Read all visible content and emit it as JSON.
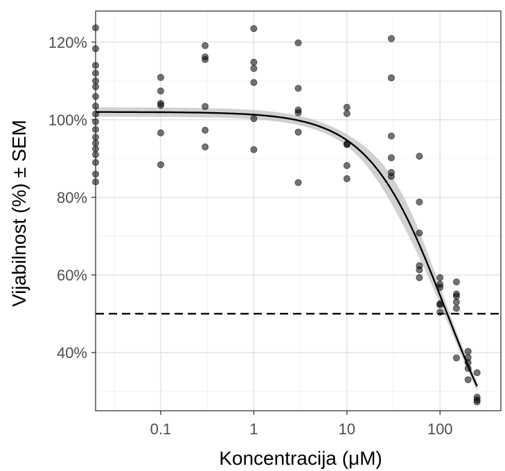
{
  "chart_data": {
    "type": "scatter",
    "xlabel": "Koncentracija (μM)",
    "ylabel": "Vijabilnost (%) ± SEM",
    "x_scale": "log10",
    "xlim": [
      0.02,
      450
    ],
    "ylim": [
      25,
      128
    ],
    "x_ticks": [
      {
        "value": 0.1,
        "label": "0.1"
      },
      {
        "value": 1,
        "label": "1"
      },
      {
        "value": 10,
        "label": "10"
      },
      {
        "value": 100,
        "label": "100"
      }
    ],
    "y_ticks": [
      {
        "value": 40,
        "label": "40%"
      },
      {
        "value": 60,
        "label": "60%"
      },
      {
        "value": 80,
        "label": "80%"
      },
      {
        "value": 100,
        "label": "100%"
      },
      {
        "value": 120,
        "label": "120%"
      }
    ],
    "grid": true,
    "reference_line": {
      "y": 50,
      "style": "dashed"
    },
    "fit_curve": {
      "model": "log-logistic",
      "top": 102,
      "bottom": 0,
      "ec50": 115,
      "hill": 1.05,
      "x_range": [
        0.02,
        250
      ],
      "confidence_band": true
    },
    "points": [
      {
        "x": 0.02,
        "y": 123.7
      },
      {
        "x": 0.02,
        "y": 118.3
      },
      {
        "x": 0.02,
        "y": 114.0
      },
      {
        "x": 0.02,
        "y": 112.0
      },
      {
        "x": 0.02,
        "y": 110.0
      },
      {
        "x": 0.02,
        "y": 108.5
      },
      {
        "x": 0.02,
        "y": 106.0
      },
      {
        "x": 0.02,
        "y": 103.5
      },
      {
        "x": 0.02,
        "y": 101.5
      },
      {
        "x": 0.02,
        "y": 99.5
      },
      {
        "x": 0.02,
        "y": 97.5
      },
      {
        "x": 0.02,
        "y": 95.5
      },
      {
        "x": 0.02,
        "y": 94.0
      },
      {
        "x": 0.02,
        "y": 92.5
      },
      {
        "x": 0.02,
        "y": 91.0
      },
      {
        "x": 0.02,
        "y": 89.0
      },
      {
        "x": 0.02,
        "y": 86.0
      },
      {
        "x": 0.02,
        "y": 84.0
      },
      {
        "x": 0.1,
        "y": 110.9
      },
      {
        "x": 0.1,
        "y": 107.4
      },
      {
        "x": 0.1,
        "y": 104.2
      },
      {
        "x": 0.1,
        "y": 103.7
      },
      {
        "x": 0.1,
        "y": 96.6
      },
      {
        "x": 0.1,
        "y": 88.4
      },
      {
        "x": 0.3,
        "y": 119.1
      },
      {
        "x": 0.3,
        "y": 116.2
      },
      {
        "x": 0.3,
        "y": 115.5
      },
      {
        "x": 0.3,
        "y": 103.4
      },
      {
        "x": 0.3,
        "y": 97.3
      },
      {
        "x": 0.3,
        "y": 93.0
      },
      {
        "x": 1,
        "y": 123.5
      },
      {
        "x": 1,
        "y": 114.8
      },
      {
        "x": 1,
        "y": 113.2
      },
      {
        "x": 1,
        "y": 109.6
      },
      {
        "x": 1,
        "y": 100.3
      },
      {
        "x": 1,
        "y": 92.3
      },
      {
        "x": 3,
        "y": 119.8
      },
      {
        "x": 3,
        "y": 108.1
      },
      {
        "x": 3,
        "y": 102.5
      },
      {
        "x": 3,
        "y": 101.8
      },
      {
        "x": 3,
        "y": 96.8
      },
      {
        "x": 3,
        "y": 83.8
      },
      {
        "x": 10,
        "y": 103.2
      },
      {
        "x": 10,
        "y": 101.6
      },
      {
        "x": 10,
        "y": 93.8
      },
      {
        "x": 10,
        "y": 93.6
      },
      {
        "x": 10,
        "y": 88.2
      },
      {
        "x": 10,
        "y": 84.8
      },
      {
        "x": 30,
        "y": 120.9
      },
      {
        "x": 30,
        "y": 110.8
      },
      {
        "x": 30,
        "y": 95.8
      },
      {
        "x": 30,
        "y": 90.2
      },
      {
        "x": 30,
        "y": 86.4
      },
      {
        "x": 30,
        "y": 85.4
      },
      {
        "x": 60,
        "y": 90.6
      },
      {
        "x": 60,
        "y": 78.8
      },
      {
        "x": 60,
        "y": 70.8
      },
      {
        "x": 60,
        "y": 62.4
      },
      {
        "x": 60,
        "y": 61.3
      },
      {
        "x": 60,
        "y": 59.3
      },
      {
        "x": 100,
        "y": 59.3
      },
      {
        "x": 100,
        "y": 57.6
      },
      {
        "x": 100,
        "y": 56.8
      },
      {
        "x": 100,
        "y": 52.6
      },
      {
        "x": 100,
        "y": 52.3
      },
      {
        "x": 100,
        "y": 50.4
      },
      {
        "x": 150,
        "y": 58.2
      },
      {
        "x": 150,
        "y": 55.1
      },
      {
        "x": 150,
        "y": 54.5
      },
      {
        "x": 150,
        "y": 53.0
      },
      {
        "x": 150,
        "y": 51.4
      },
      {
        "x": 150,
        "y": 38.6
      },
      {
        "x": 200,
        "y": 40.3
      },
      {
        "x": 200,
        "y": 38.7
      },
      {
        "x": 200,
        "y": 37.4
      },
      {
        "x": 200,
        "y": 35.9
      },
      {
        "x": 200,
        "y": 33.0
      },
      {
        "x": 250,
        "y": 34.8
      },
      {
        "x": 250,
        "y": 28.5
      },
      {
        "x": 250,
        "y": 27.8
      },
      {
        "x": 250,
        "y": 27.3
      }
    ]
  }
}
